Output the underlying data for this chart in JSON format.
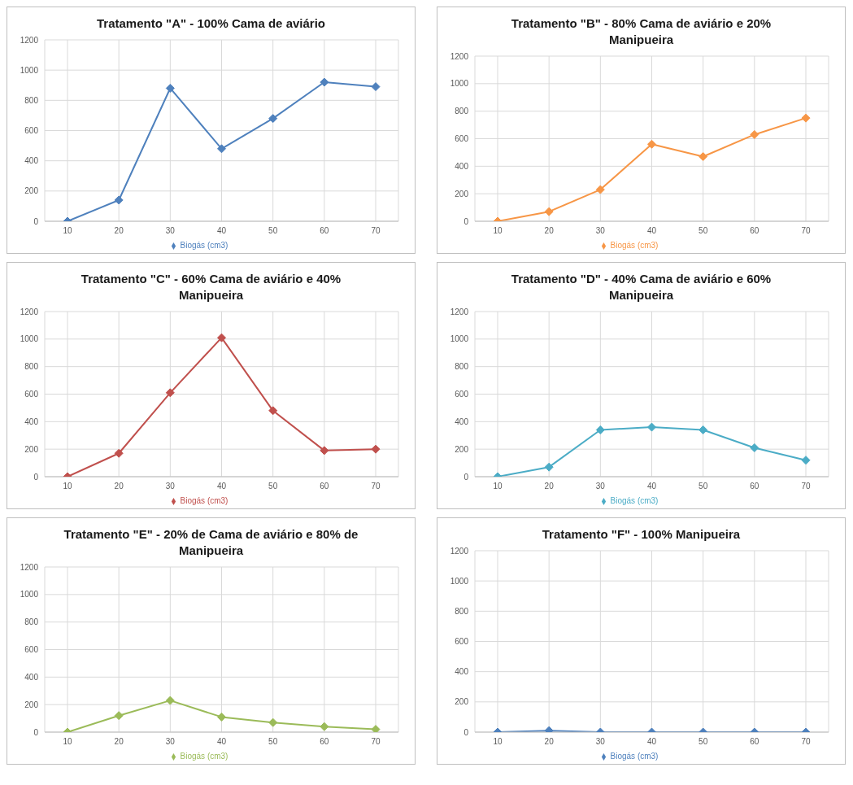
{
  "chart_data": [
    {
      "type": "line",
      "title": "Tratamento \"A\" - 100% Cama de aviário",
      "categories": [
        "10",
        "20",
        "30",
        "40",
        "50",
        "60",
        "70"
      ],
      "series": [
        {
          "name": "Biogás (cm3)",
          "color": "#4f81bd",
          "values": [
            0,
            140,
            880,
            480,
            680,
            920,
            890
          ]
        }
      ],
      "ylim": [
        0,
        1200
      ],
      "yticks": [
        0,
        200,
        400,
        600,
        800,
        1000,
        1200
      ],
      "grid": true,
      "legend": "bottom",
      "marker": "diamond"
    },
    {
      "type": "line",
      "title": "Tratamento \"B\" - 80% Cama de aviário e 20% Manipueira",
      "categories": [
        "10",
        "20",
        "30",
        "40",
        "50",
        "60",
        "70"
      ],
      "series": [
        {
          "name": "Biogás (cm3)",
          "color": "#f79646",
          "values": [
            0,
            70,
            230,
            560,
            470,
            630,
            750
          ]
        }
      ],
      "ylim": [
        0,
        1200
      ],
      "yticks": [
        0,
        200,
        400,
        600,
        800,
        1000,
        1200
      ],
      "grid": true,
      "legend": "bottom",
      "marker": "diamond"
    },
    {
      "type": "line",
      "title": "Tratamento \"C\" - 60% Cama de aviário e 40% Manipueira",
      "categories": [
        "10",
        "20",
        "30",
        "40",
        "50",
        "60",
        "70"
      ],
      "series": [
        {
          "name": "Biogás (cm3)",
          "color": "#c0504d",
          "values": [
            0,
            170,
            610,
            1010,
            480,
            190,
            200
          ]
        }
      ],
      "ylim": [
        0,
        1200
      ],
      "yticks": [
        0,
        200,
        400,
        600,
        800,
        1000,
        1200
      ],
      "grid": true,
      "legend": "bottom",
      "marker": "diamond"
    },
    {
      "type": "line",
      "title": "Tratamento \"D\" - 40% Cama de aviário e 60% Manipueira",
      "categories": [
        "10",
        "20",
        "30",
        "40",
        "50",
        "60",
        "70"
      ],
      "series": [
        {
          "name": "Biogás (cm3)",
          "color": "#4bacc6",
          "values": [
            0,
            70,
            340,
            360,
            340,
            210,
            120
          ]
        }
      ],
      "ylim": [
        0,
        1200
      ],
      "yticks": [
        0,
        200,
        400,
        600,
        800,
        1000,
        1200
      ],
      "grid": true,
      "legend": "bottom",
      "marker": "diamond"
    },
    {
      "type": "line",
      "title": "Tratamento \"E\" - 20% de Cama de aviário e 80% de Manipueira",
      "categories": [
        "10",
        "20",
        "30",
        "40",
        "50",
        "60",
        "70"
      ],
      "series": [
        {
          "name": "Biogás (cm3)",
          "color": "#9bbb59",
          "values": [
            0,
            120,
            230,
            110,
            70,
            40,
            20
          ]
        }
      ],
      "ylim": [
        0,
        1200
      ],
      "yticks": [
        0,
        200,
        400,
        600,
        800,
        1000,
        1200
      ],
      "grid": true,
      "legend": "bottom",
      "marker": "diamond"
    },
    {
      "type": "line",
      "title": "Tratamento \"F\" - 100% Manipueira",
      "categories": [
        "10",
        "20",
        "30",
        "40",
        "50",
        "60",
        "70"
      ],
      "series": [
        {
          "name": "Biogás (cm3)",
          "color": "#4f81bd",
          "values": [
            0,
            10,
            0,
            0,
            0,
            0,
            0
          ]
        }
      ],
      "ylim": [
        0,
        1200
      ],
      "yticks": [
        0,
        200,
        400,
        600,
        800,
        1000,
        1200
      ],
      "grid": true,
      "legend": "bottom",
      "marker": "diamond"
    }
  ]
}
